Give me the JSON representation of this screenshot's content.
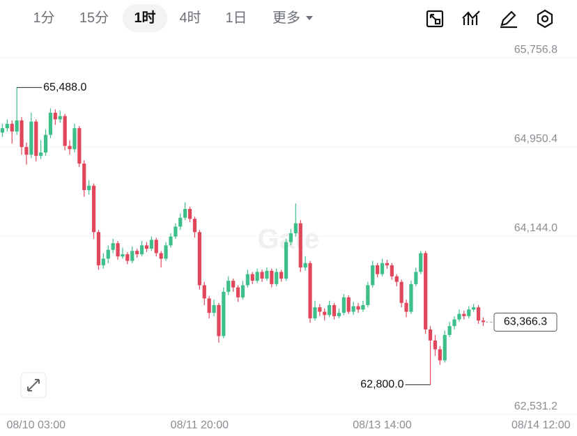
{
  "toolbar": {
    "intervals": [
      "1分",
      "15分",
      "1时",
      "4时",
      "1日"
    ],
    "more": "更多"
  },
  "chart_data": {
    "type": "candlestick",
    "watermark": "Gate",
    "up_color": "#3dbf8a",
    "down_color": "#e0475b",
    "grid": true,
    "ylim": [
      62531.2,
      65756.8
    ],
    "yticks": [
      {
        "value": 65756.8,
        "label": "65,756.8"
      },
      {
        "value": 64950.4,
        "label": "64,950.4"
      },
      {
        "value": 64144.0,
        "label": "64,144.0"
      },
      {
        "value": 62531.2,
        "label": "62,531.2"
      }
    ],
    "xlim": [
      -0.5,
      119.5
    ],
    "xticks": [
      {
        "value": 7,
        "label": "08/10 03:00"
      },
      {
        "value": 41,
        "label": "08/11 20:00"
      },
      {
        "value": 79,
        "label": "08/13 14:00"
      },
      {
        "value": 112,
        "label": "08/14 12:00"
      }
    ],
    "open": [
      65080,
      65120,
      65160,
      65090,
      65190,
      64950,
      64880,
      65180,
      64870,
      64900,
      65060,
      65260,
      65200,
      65230,
      64960,
      64930,
      65120,
      64800,
      64560,
      64600,
      64180,
      63880,
      63940,
      64020,
      64080,
      63960,
      63980,
      63920,
      64010,
      63980,
      64060,
      64030,
      64110,
      63990,
      63940,
      64060,
      64140,
      64230,
      64310,
      64390,
      64300,
      64180,
      63700,
      63580,
      63450,
      63520,
      63240,
      63640,
      63740,
      63680,
      63590,
      63700,
      63800,
      63740,
      63820,
      63760,
      63830,
      63710,
      63820,
      63760,
      64090,
      64170,
      64260,
      63860,
      63900,
      63400,
      63500,
      63460,
      63430,
      63520,
      63420,
      63450,
      63590,
      63460,
      63510,
      63480,
      63520,
      63700,
      63880,
      63800,
      63900,
      63880,
      63780,
      63730,
      63540,
      63460,
      63710,
      63820,
      63990,
      63300,
      63200,
      63120,
      63020,
      63250,
      63330,
      63390,
      63440,
      63420,
      63480,
      63500,
      63380
    ],
    "high": [
      65160,
      65200,
      65190,
      65488,
      65220,
      64990,
      65260,
      65200,
      65010,
      65110,
      65300,
      65290,
      65280,
      65250,
      65010,
      65160,
      65140,
      64830,
      64650,
      64620,
      64200,
      63990,
      64060,
      64120,
      64100,
      64040,
      64000,
      64050,
      64030,
      64100,
      64090,
      64140,
      64130,
      64010,
      64090,
      64170,
      64260,
      64350,
      64450,
      64410,
      64320,
      64200,
      63730,
      63600,
      63570,
      63540,
      63680,
      63780,
      63760,
      63700,
      63740,
      63840,
      63820,
      63850,
      63840,
      63860,
      63850,
      63850,
      63840,
      64120,
      64210,
      64440,
      64290,
      63960,
      63920,
      63560,
      63530,
      63490,
      63560,
      63540,
      63490,
      63620,
      63610,
      63550,
      63540,
      63560,
      63730,
      63920,
      63900,
      63940,
      63930,
      63900,
      63800,
      63750,
      63570,
      63740,
      63860,
      64010,
      64010,
      63330,
      63250,
      63150,
      63290,
      63370,
      63420,
      63480,
      63470,
      63510,
      63530,
      63520,
      63410
    ],
    "low": [
      65040,
      65090,
      64980,
      65060,
      64880,
      64790,
      64850,
      64820,
      64840,
      64870,
      65030,
      65150,
      65170,
      64920,
      64880,
      64900,
      64770,
      64500,
      64520,
      64120,
      63840,
      63850,
      63900,
      63990,
      63930,
      63940,
      63890,
      63900,
      63950,
      63960,
      64000,
      64010,
      63960,
      63860,
      63920,
      64040,
      64120,
      64200,
      64290,
      64270,
      64130,
      63660,
      63520,
      63400,
      63420,
      63180,
      63220,
      63610,
      63640,
      63550,
      63570,
      63680,
      63710,
      63720,
      63730,
      63740,
      63680,
      63690,
      63730,
      63740,
      64060,
      64140,
      63820,
      63830,
      63360,
      63380,
      63420,
      63380,
      63410,
      63390,
      63400,
      63430,
      63440,
      63430,
      63450,
      63460,
      63500,
      63680,
      63770,
      63780,
      63850,
      63750,
      63690,
      63500,
      63410,
      63440,
      63690,
      63800,
      63260,
      62800,
      63060,
      62980,
      63000,
      63230,
      63300,
      63370,
      63390,
      63400,
      63460,
      63350,
      63330
    ],
    "close": [
      65120,
      65160,
      65090,
      65190,
      64950,
      64880,
      65180,
      64870,
      64900,
      65060,
      65260,
      65200,
      65230,
      64960,
      64930,
      65120,
      64800,
      64560,
      64600,
      64180,
      63880,
      63940,
      64020,
      64080,
      63960,
      63980,
      63920,
      64010,
      63980,
      64060,
      64030,
      64110,
      63990,
      63940,
      64060,
      64140,
      64230,
      64310,
      64390,
      64300,
      64180,
      63700,
      63580,
      63450,
      63520,
      63240,
      63640,
      63740,
      63680,
      63590,
      63700,
      63800,
      63740,
      63820,
      63760,
      63830,
      63710,
      63820,
      63760,
      64090,
      64170,
      64260,
      63860,
      63900,
      63400,
      63500,
      63460,
      63430,
      63520,
      63420,
      63450,
      63590,
      63460,
      63510,
      63480,
      63520,
      63700,
      63880,
      63800,
      63900,
      63880,
      63780,
      63730,
      63540,
      63460,
      63710,
      63820,
      63990,
      63300,
      63200,
      63120,
      63020,
      63250,
      63330,
      63390,
      63440,
      63420,
      63480,
      63500,
      63380,
      63366.3
    ],
    "annotations": [
      {
        "text": "65,488.0",
        "value": 65488
      },
      {
        "text": "62,800.0",
        "value": 62800
      }
    ],
    "last_price": {
      "text": "63,366.3",
      "value": 63366.3
    }
  }
}
